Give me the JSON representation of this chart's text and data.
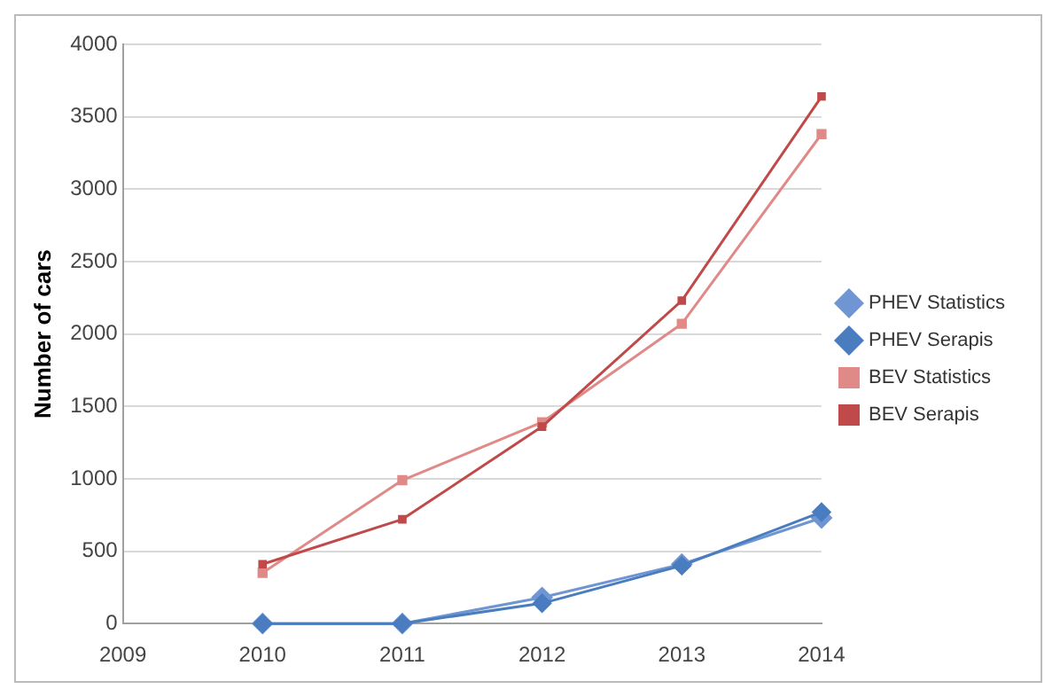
{
  "chart_data": {
    "type": "line",
    "ylabel": "Number of cars",
    "x": [
      2010,
      2011,
      2012,
      2013,
      2014
    ],
    "xlim": [
      2009,
      2014
    ],
    "xticks": [
      2009,
      2010,
      2011,
      2012,
      2013,
      2014
    ],
    "ylim": [
      0,
      4000
    ],
    "yticks": [
      0,
      500,
      1000,
      1500,
      2000,
      2500,
      3000,
      3500,
      4000
    ],
    "grid": "y",
    "legend": "right",
    "series": [
      {
        "name": "PHEV Statistics",
        "color": "#6f96d2",
        "marker": "diamond",
        "values": [
          0,
          0,
          180,
          410,
          730
        ]
      },
      {
        "name": "PHEV Serapis",
        "color": "#4a7cc0",
        "marker": "diamond",
        "values": [
          0,
          0,
          140,
          400,
          770
        ]
      },
      {
        "name": "BEV Statistics",
        "color": "#e08a88",
        "marker": "square",
        "values": [
          350,
          990,
          1390,
          2070,
          3380
        ]
      },
      {
        "name": "BEV Serapis",
        "color": "#c0494a",
        "marker": "square",
        "values": [
          410,
          720,
          1360,
          2230,
          3640
        ]
      }
    ]
  }
}
